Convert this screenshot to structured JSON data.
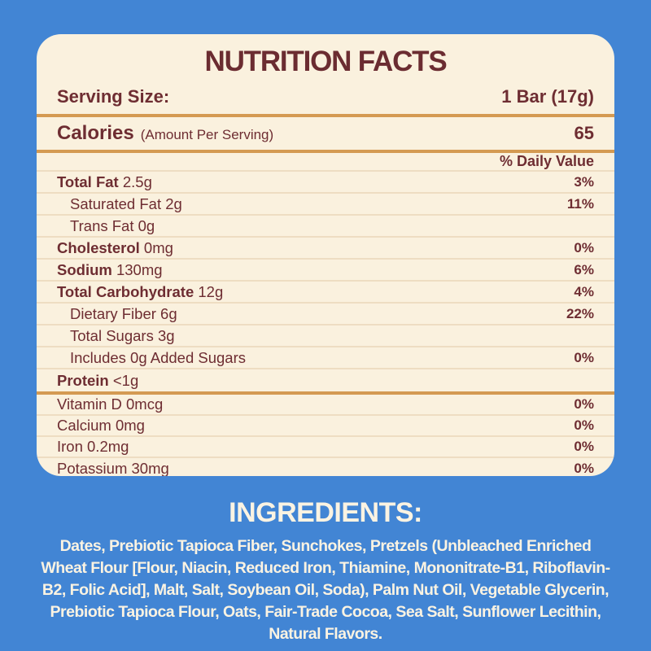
{
  "colors": {
    "background": "#4285d4",
    "panel_background": "#faf1de",
    "label_text": "#6e2d32",
    "divider_thick": "#d49a52",
    "divider_thin": "#eeddc2",
    "ingredients_text": "#fbf3e2"
  },
  "label": {
    "title": "NUTRITION FACTS",
    "serving": {
      "label": "Serving Size:",
      "value": "1 Bar (17g)"
    },
    "calories": {
      "label": "Calories",
      "note": "(Amount Per Serving)",
      "value": "65"
    },
    "daily_value_header": "% Daily Value",
    "rows": [
      {
        "bold": "Total Fat",
        "rest": " 2.5g",
        "dv": "3%"
      },
      {
        "bold": "",
        "rest": "Saturated Fat 2g",
        "dv": "11%"
      },
      {
        "bold": "",
        "rest": "Trans Fat 0g",
        "dv": ""
      },
      {
        "bold": "Cholesterol",
        "rest": " 0mg",
        "dv": "0%"
      },
      {
        "bold": "Sodium",
        "rest": " 130mg",
        "dv": "6%"
      },
      {
        "bold": "Total Carbohydrate",
        "rest": " 12g",
        "dv": "4%"
      },
      {
        "bold": "",
        "rest": "Dietary Fiber 6g",
        "dv": "22%"
      },
      {
        "bold": "",
        "rest": "Total Sugars 3g",
        "dv": ""
      },
      {
        "bold": "",
        "rest": "Includes 0g Added Sugars",
        "dv": "0%"
      },
      {
        "bold": "Protein",
        "rest": " <1g",
        "dv": ""
      }
    ],
    "vitamin_rows": [
      {
        "label": "Vitamin D 0mcg",
        "dv": "0%"
      },
      {
        "label": "Calcium 0mg",
        "dv": "0%"
      },
      {
        "label": "Iron 0.2mg",
        "dv": "0%"
      },
      {
        "label": "Potassium 30mg",
        "dv": "0%"
      }
    ]
  },
  "ingredients": {
    "title": "INGREDIENTS:",
    "text": "Dates, Prebiotic Tapioca Fiber, Sunchokes, Pretzels (Unbleached Enriched Wheat Flour [Flour, Niacin, Reduced Iron, Thiamine, Mononitrate-B1, Riboflavin-B2, Folic Acid], Malt, Salt, Soybean Oil, Soda), Palm Nut Oil, Vegetable Glycerin, Prebiotic Tapioca Flour,  Oats, Fair-Trade Cocoa, Sea Salt, Sunflower Lecithin, Natural Flavors."
  }
}
